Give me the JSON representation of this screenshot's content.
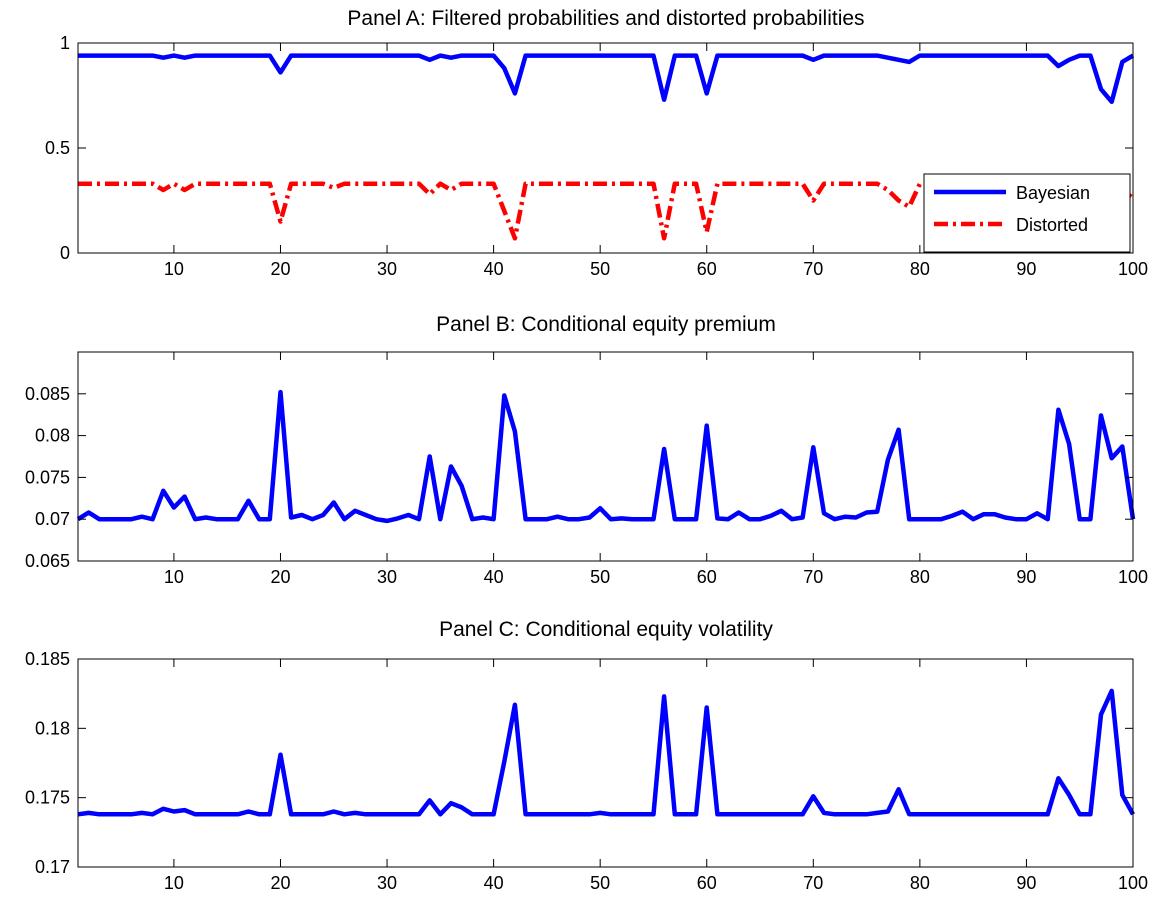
{
  "chart_data": [
    {
      "type": "line",
      "title": "Panel A: Filtered probabilities and distorted probabilities",
      "xlabel": "",
      "ylabel": "",
      "xlim": [
        1,
        100
      ],
      "ylim": [
        0,
        1
      ],
      "x_ticks": [
        10,
        20,
        30,
        40,
        50,
        60,
        70,
        80,
        90,
        100
      ],
      "x_tick_labels": [
        "10",
        "20",
        "30",
        "40",
        "50",
        "60",
        "70",
        "80",
        "90",
        "100"
      ],
      "y_ticks": [
        0,
        0.5,
        1
      ],
      "y_tick_labels": [
        "0",
        "0.5",
        "1"
      ],
      "grid": false,
      "legend": "bottom-right",
      "x": [
        1,
        2,
        3,
        4,
        5,
        6,
        7,
        8,
        9,
        10,
        11,
        12,
        13,
        14,
        15,
        16,
        17,
        18,
        19,
        20,
        21,
        22,
        23,
        24,
        25,
        26,
        27,
        28,
        29,
        30,
        31,
        32,
        33,
        34,
        35,
        36,
        37,
        38,
        39,
        40,
        41,
        42,
        43,
        44,
        45,
        46,
        47,
        48,
        49,
        50,
        51,
        52,
        53,
        54,
        55,
        56,
        57,
        58,
        59,
        60,
        61,
        62,
        63,
        64,
        65,
        66,
        67,
        68,
        69,
        70,
        71,
        72,
        73,
        74,
        75,
        76,
        77,
        78,
        79,
        80,
        81,
        82,
        83,
        84,
        85,
        86,
        87,
        88,
        89,
        90,
        91,
        92,
        93,
        94,
        95,
        96,
        97,
        98,
        99,
        100
      ],
      "series": [
        {
          "name": "Bayesian",
          "color": "#0000ff",
          "style": "solid",
          "values": [
            0.94,
            0.94,
            0.94,
            0.94,
            0.94,
            0.94,
            0.94,
            0.94,
            0.93,
            0.94,
            0.93,
            0.94,
            0.94,
            0.94,
            0.94,
            0.94,
            0.94,
            0.94,
            0.94,
            0.86,
            0.94,
            0.94,
            0.94,
            0.94,
            0.94,
            0.94,
            0.94,
            0.94,
            0.94,
            0.94,
            0.94,
            0.94,
            0.94,
            0.92,
            0.94,
            0.93,
            0.94,
            0.94,
            0.94,
            0.94,
            0.88,
            0.76,
            0.94,
            0.94,
            0.94,
            0.94,
            0.94,
            0.94,
            0.94,
            0.94,
            0.94,
            0.94,
            0.94,
            0.94,
            0.94,
            0.73,
            0.94,
            0.94,
            0.94,
            0.76,
            0.94,
            0.94,
            0.94,
            0.94,
            0.94,
            0.94,
            0.94,
            0.94,
            0.94,
            0.92,
            0.94,
            0.94,
            0.94,
            0.94,
            0.94,
            0.94,
            0.93,
            0.92,
            0.91,
            0.94,
            0.94,
            0.94,
            0.94,
            0.94,
            0.94,
            0.94,
            0.94,
            0.94,
            0.94,
            0.94,
            0.94,
            0.94,
            0.89,
            0.92,
            0.94,
            0.94,
            0.78,
            0.72,
            0.91,
            0.94
          ]
        },
        {
          "name": "Distorted",
          "color": "#ff0000",
          "style": "dash-dot",
          "values": [
            0.33,
            0.33,
            0.33,
            0.33,
            0.33,
            0.33,
            0.33,
            0.33,
            0.3,
            0.33,
            0.3,
            0.33,
            0.33,
            0.33,
            0.33,
            0.33,
            0.33,
            0.33,
            0.33,
            0.15,
            0.33,
            0.33,
            0.33,
            0.33,
            0.31,
            0.33,
            0.33,
            0.33,
            0.33,
            0.33,
            0.33,
            0.33,
            0.33,
            0.28,
            0.33,
            0.3,
            0.33,
            0.33,
            0.33,
            0.33,
            0.2,
            0.07,
            0.33,
            0.33,
            0.33,
            0.33,
            0.33,
            0.33,
            0.33,
            0.33,
            0.33,
            0.33,
            0.33,
            0.33,
            0.33,
            0.07,
            0.33,
            0.33,
            0.33,
            0.1,
            0.33,
            0.33,
            0.33,
            0.33,
            0.33,
            0.33,
            0.33,
            0.33,
            0.33,
            0.25,
            0.33,
            0.33,
            0.33,
            0.33,
            0.33,
            0.33,
            0.3,
            0.25,
            0.22,
            0.33,
            0.33,
            0.33,
            0.33,
            0.33,
            0.33,
            0.33,
            0.33,
            0.33,
            0.33,
            0.33,
            0.33,
            0.33,
            0.24,
            0.28,
            0.33,
            0.33,
            0.12,
            0.1,
            0.22,
            0.3
          ]
        }
      ]
    },
    {
      "type": "line",
      "title": "Panel B: Conditional equity premium",
      "xlabel": "",
      "ylabel": "",
      "xlim": [
        1,
        100
      ],
      "ylim": [
        0.065,
        0.09
      ],
      "x_ticks": [
        10,
        20,
        30,
        40,
        50,
        60,
        70,
        80,
        90,
        100
      ],
      "x_tick_labels": [
        "10",
        "20",
        "30",
        "40",
        "50",
        "60",
        "70",
        "80",
        "90",
        "100"
      ],
      "y_ticks": [
        0.065,
        0.07,
        0.075,
        0.08,
        0.085
      ],
      "y_tick_labels": [
        "0.065",
        "0.07",
        "0.075",
        "0.08",
        "0.085"
      ],
      "grid": false,
      "x": [
        1,
        2,
        3,
        4,
        5,
        6,
        7,
        8,
        9,
        10,
        11,
        12,
        13,
        14,
        15,
        16,
        17,
        18,
        19,
        20,
        21,
        22,
        23,
        24,
        25,
        26,
        27,
        28,
        29,
        30,
        31,
        32,
        33,
        34,
        35,
        36,
        37,
        38,
        39,
        40,
        41,
        42,
        43,
        44,
        45,
        46,
        47,
        48,
        49,
        50,
        51,
        52,
        53,
        54,
        55,
        56,
        57,
        58,
        59,
        60,
        61,
        62,
        63,
        64,
        65,
        66,
        67,
        68,
        69,
        70,
        71,
        72,
        73,
        74,
        75,
        76,
        77,
        78,
        79,
        80,
        81,
        82,
        83,
        84,
        85,
        86,
        87,
        88,
        89,
        90,
        91,
        92,
        93,
        94,
        95,
        96,
        97,
        98,
        99,
        100
      ],
      "series": [
        {
          "color": "#0000ff",
          "style": "solid",
          "values": [
            0.07,
            0.0708,
            0.07,
            0.07,
            0.07,
            0.07,
            0.0703,
            0.07,
            0.0734,
            0.0714,
            0.0727,
            0.07,
            0.0702,
            0.07,
            0.07,
            0.07,
            0.0722,
            0.07,
            0.07,
            0.0852,
            0.0702,
            0.0705,
            0.07,
            0.0705,
            0.072,
            0.07,
            0.071,
            0.0705,
            0.07,
            0.0698,
            0.0701,
            0.0705,
            0.07,
            0.0775,
            0.07,
            0.0763,
            0.074,
            0.07,
            0.0702,
            0.07,
            0.0848,
            0.0805,
            0.07,
            0.07,
            0.07,
            0.0703,
            0.07,
            0.07,
            0.0702,
            0.0713,
            0.07,
            0.0701,
            0.07,
            0.07,
            0.07,
            0.0784,
            0.07,
            0.07,
            0.07,
            0.0812,
            0.0701,
            0.07,
            0.0708,
            0.07,
            0.07,
            0.0704,
            0.071,
            0.07,
            0.0702,
            0.0786,
            0.0707,
            0.07,
            0.0703,
            0.0702,
            0.0708,
            0.0709,
            0.0771,
            0.0807,
            0.07,
            0.07,
            0.07,
            0.07,
            0.0704,
            0.0709,
            0.07,
            0.0706,
            0.0706,
            0.0702,
            0.07,
            0.07,
            0.0707,
            0.07,
            0.0831,
            0.079,
            0.07,
            0.07,
            0.0824,
            0.0773,
            0.0787,
            0.07
          ]
        }
      ]
    },
    {
      "type": "line",
      "title": "Panel C: Conditional equity volatility",
      "xlabel": "",
      "ylabel": "",
      "xlim": [
        1,
        100
      ],
      "ylim": [
        0.17,
        0.185
      ],
      "x_ticks": [
        10,
        20,
        30,
        40,
        50,
        60,
        70,
        80,
        90,
        100
      ],
      "x_tick_labels": [
        "10",
        "20",
        "30",
        "40",
        "50",
        "60",
        "70",
        "80",
        "90",
        "100"
      ],
      "y_ticks": [
        0.17,
        0.175,
        0.18,
        0.185
      ],
      "y_tick_labels": [
        "0.17",
        "0.175",
        "0.18",
        "0.185"
      ],
      "grid": false,
      "x": [
        1,
        2,
        3,
        4,
        5,
        6,
        7,
        8,
        9,
        10,
        11,
        12,
        13,
        14,
        15,
        16,
        17,
        18,
        19,
        20,
        21,
        22,
        23,
        24,
        25,
        26,
        27,
        28,
        29,
        30,
        31,
        32,
        33,
        34,
        35,
        36,
        37,
        38,
        39,
        40,
        41,
        42,
        43,
        44,
        45,
        46,
        47,
        48,
        49,
        50,
        51,
        52,
        53,
        54,
        55,
        56,
        57,
        58,
        59,
        60,
        61,
        62,
        63,
        64,
        65,
        66,
        67,
        68,
        69,
        70,
        71,
        72,
        73,
        74,
        75,
        76,
        77,
        78,
        79,
        80,
        81,
        82,
        83,
        84,
        85,
        86,
        87,
        88,
        89,
        90,
        91,
        92,
        93,
        94,
        95,
        96,
        97,
        98,
        99,
        100
      ],
      "series": [
        {
          "color": "#0000ff",
          "style": "solid",
          "values": [
            0.1738,
            0.1739,
            0.1738,
            0.1738,
            0.1738,
            0.1738,
            0.1739,
            0.1738,
            0.1742,
            0.174,
            0.1741,
            0.1738,
            0.1738,
            0.1738,
            0.1738,
            0.1738,
            0.174,
            0.1738,
            0.1738,
            0.1781,
            0.1738,
            0.1738,
            0.1738,
            0.1738,
            0.174,
            0.1738,
            0.1739,
            0.1738,
            0.1738,
            0.1738,
            0.1738,
            0.1738,
            0.1738,
            0.1748,
            0.1738,
            0.1746,
            0.1743,
            0.1738,
            0.1738,
            0.1738,
            0.1776,
            0.1817,
            0.1738,
            0.1738,
            0.1738,
            0.1738,
            0.1738,
            0.1738,
            0.1738,
            0.1739,
            0.1738,
            0.1738,
            0.1738,
            0.1738,
            0.1738,
            0.1823,
            0.1738,
            0.1738,
            0.1738,
            0.1815,
            0.1738,
            0.1738,
            0.1738,
            0.1738,
            0.1738,
            0.1738,
            0.1738,
            0.1738,
            0.1738,
            0.1751,
            0.1739,
            0.1738,
            0.1738,
            0.1738,
            0.1738,
            0.1739,
            0.174,
            0.1756,
            0.1738,
            0.1738,
            0.1738,
            0.1738,
            0.1738,
            0.1738,
            0.1738,
            0.1738,
            0.1738,
            0.1738,
            0.1738,
            0.1738,
            0.1738,
            0.1738,
            0.1764,
            0.1752,
            0.1738,
            0.1738,
            0.181,
            0.1827,
            0.1752,
            0.1738
          ]
        }
      ]
    }
  ]
}
